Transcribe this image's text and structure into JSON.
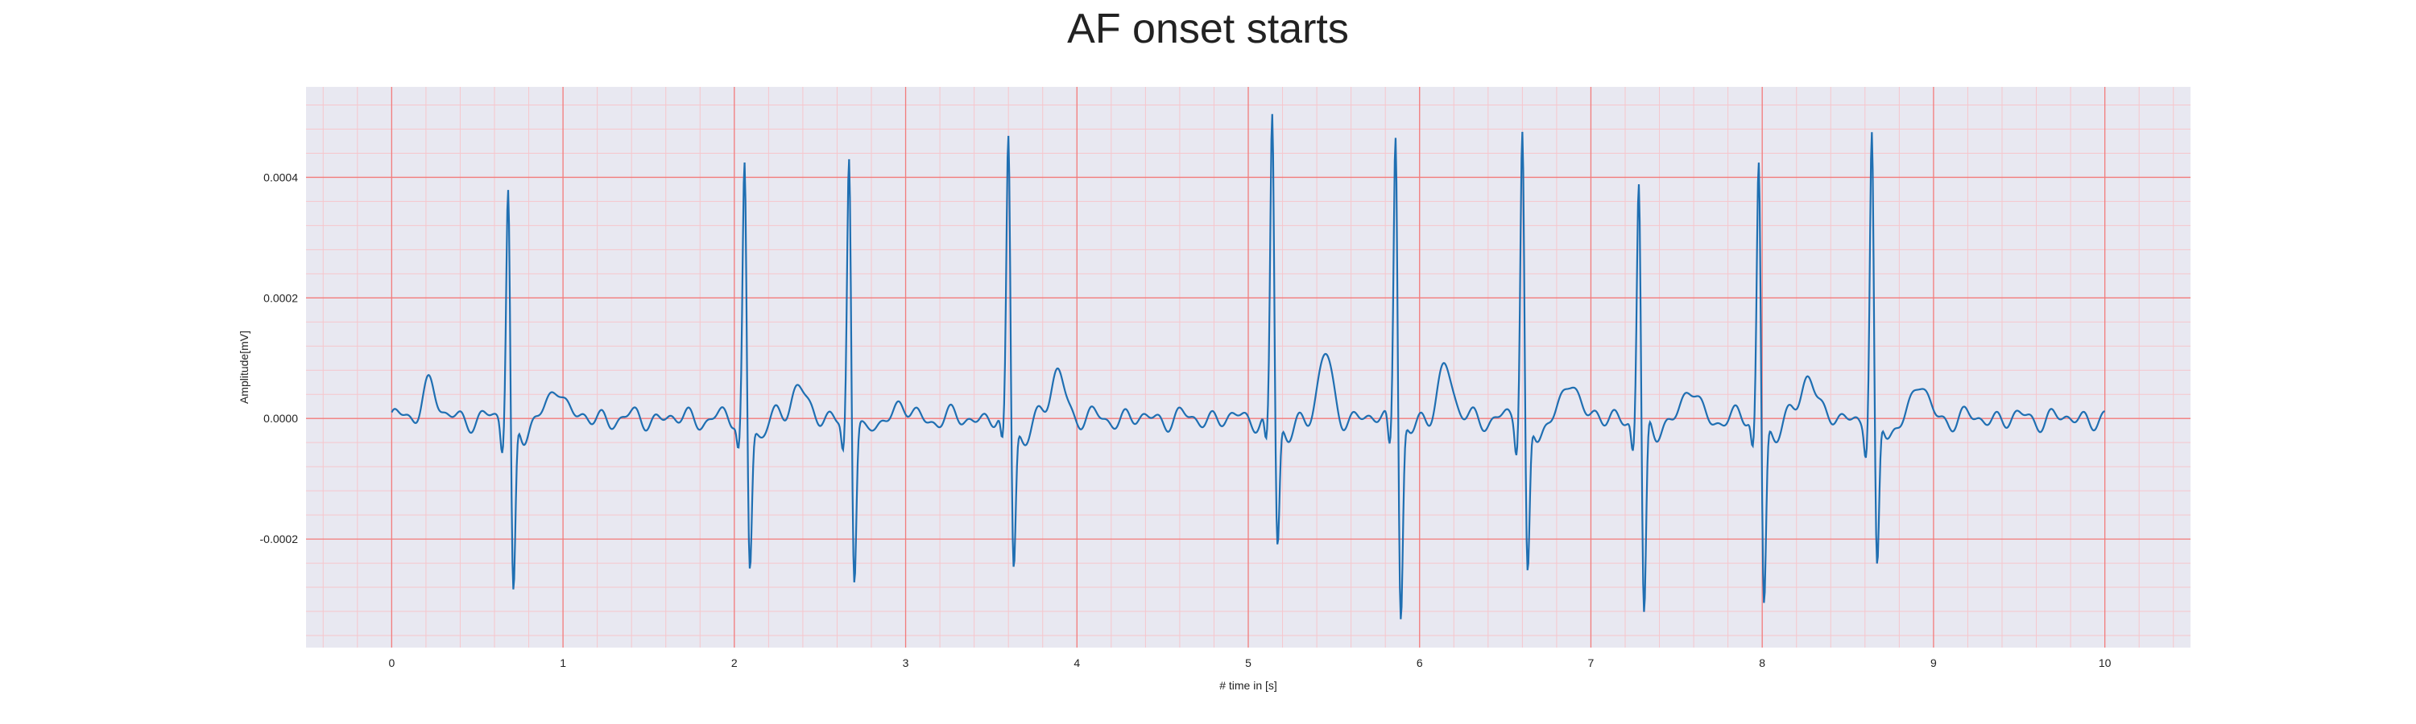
{
  "chart_data": {
    "type": "line",
    "title": "AF onset starts",
    "xlabel": "# time in [s]",
    "ylabel": "Amplitude[mV]",
    "xlim": [
      -0.5,
      10.5
    ],
    "ylim": [
      -0.00038,
      0.00055
    ],
    "x_ticks": [
      0,
      1,
      2,
      3,
      4,
      5,
      6,
      7,
      8,
      9,
      10
    ],
    "x_tick_labels": [
      "0",
      "1",
      "2",
      "3",
      "4",
      "5",
      "6",
      "7",
      "8",
      "9",
      "10"
    ],
    "y_ticks": [
      -0.0002,
      0.0,
      0.0002,
      0.0004
    ],
    "y_tick_labels": [
      "-0.0002",
      "0.0000",
      "0.0002",
      "0.0004"
    ],
    "x_minor_step": 0.2,
    "y_minor_step": 4e-05,
    "grid": true,
    "colors": {
      "line": "#1f6fb2",
      "plot_background": "#e8e8f1",
      "major_grid": "#f27c7c",
      "minor_grid": "#f6c6cc"
    },
    "r_peaks": [
      {
        "t": 0.68,
        "r": 0.0004,
        "s": -0.0003
      },
      {
        "t": 2.06,
        "r": 0.00043,
        "s": -0.00025
      },
      {
        "t": 2.67,
        "r": 0.00045,
        "s": -0.00027
      },
      {
        "t": 3.6,
        "r": 0.00047,
        "s": -0.00025
      },
      {
        "t": 5.14,
        "r": 0.00051,
        "s": -0.00022
      },
      {
        "t": 5.86,
        "r": 0.0005,
        "s": -0.00033
      },
      {
        "t": 6.6,
        "r": 0.00049,
        "s": -0.00027
      },
      {
        "t": 7.28,
        "r": 0.00041,
        "s": -0.00034
      },
      {
        "t": 7.98,
        "r": 0.00044,
        "s": -0.00031
      },
      {
        "t": 8.64,
        "r": 0.00048,
        "s": -0.00027
      }
    ],
    "t_waves": [
      {
        "t": 0.22,
        "a": 6e-05
      },
      {
        "t": 0.97,
        "a": 6e-05
      },
      {
        "t": 2.37,
        "a": 6e-05
      },
      {
        "t": 2.98,
        "a": 2e-05
      },
      {
        "t": 3.89,
        "a": 8e-05
      },
      {
        "t": 5.45,
        "a": 0.0001
      },
      {
        "t": 6.15,
        "a": 9e-05
      },
      {
        "t": 6.89,
        "a": 7e-05
      },
      {
        "t": 7.58,
        "a": 5e-05
      },
      {
        "t": 8.27,
        "a": 8e-05
      },
      {
        "t": 8.92,
        "a": 6e-05
      }
    ],
    "sample_rate": 200,
    "baseline_noise": 1e-05
  }
}
